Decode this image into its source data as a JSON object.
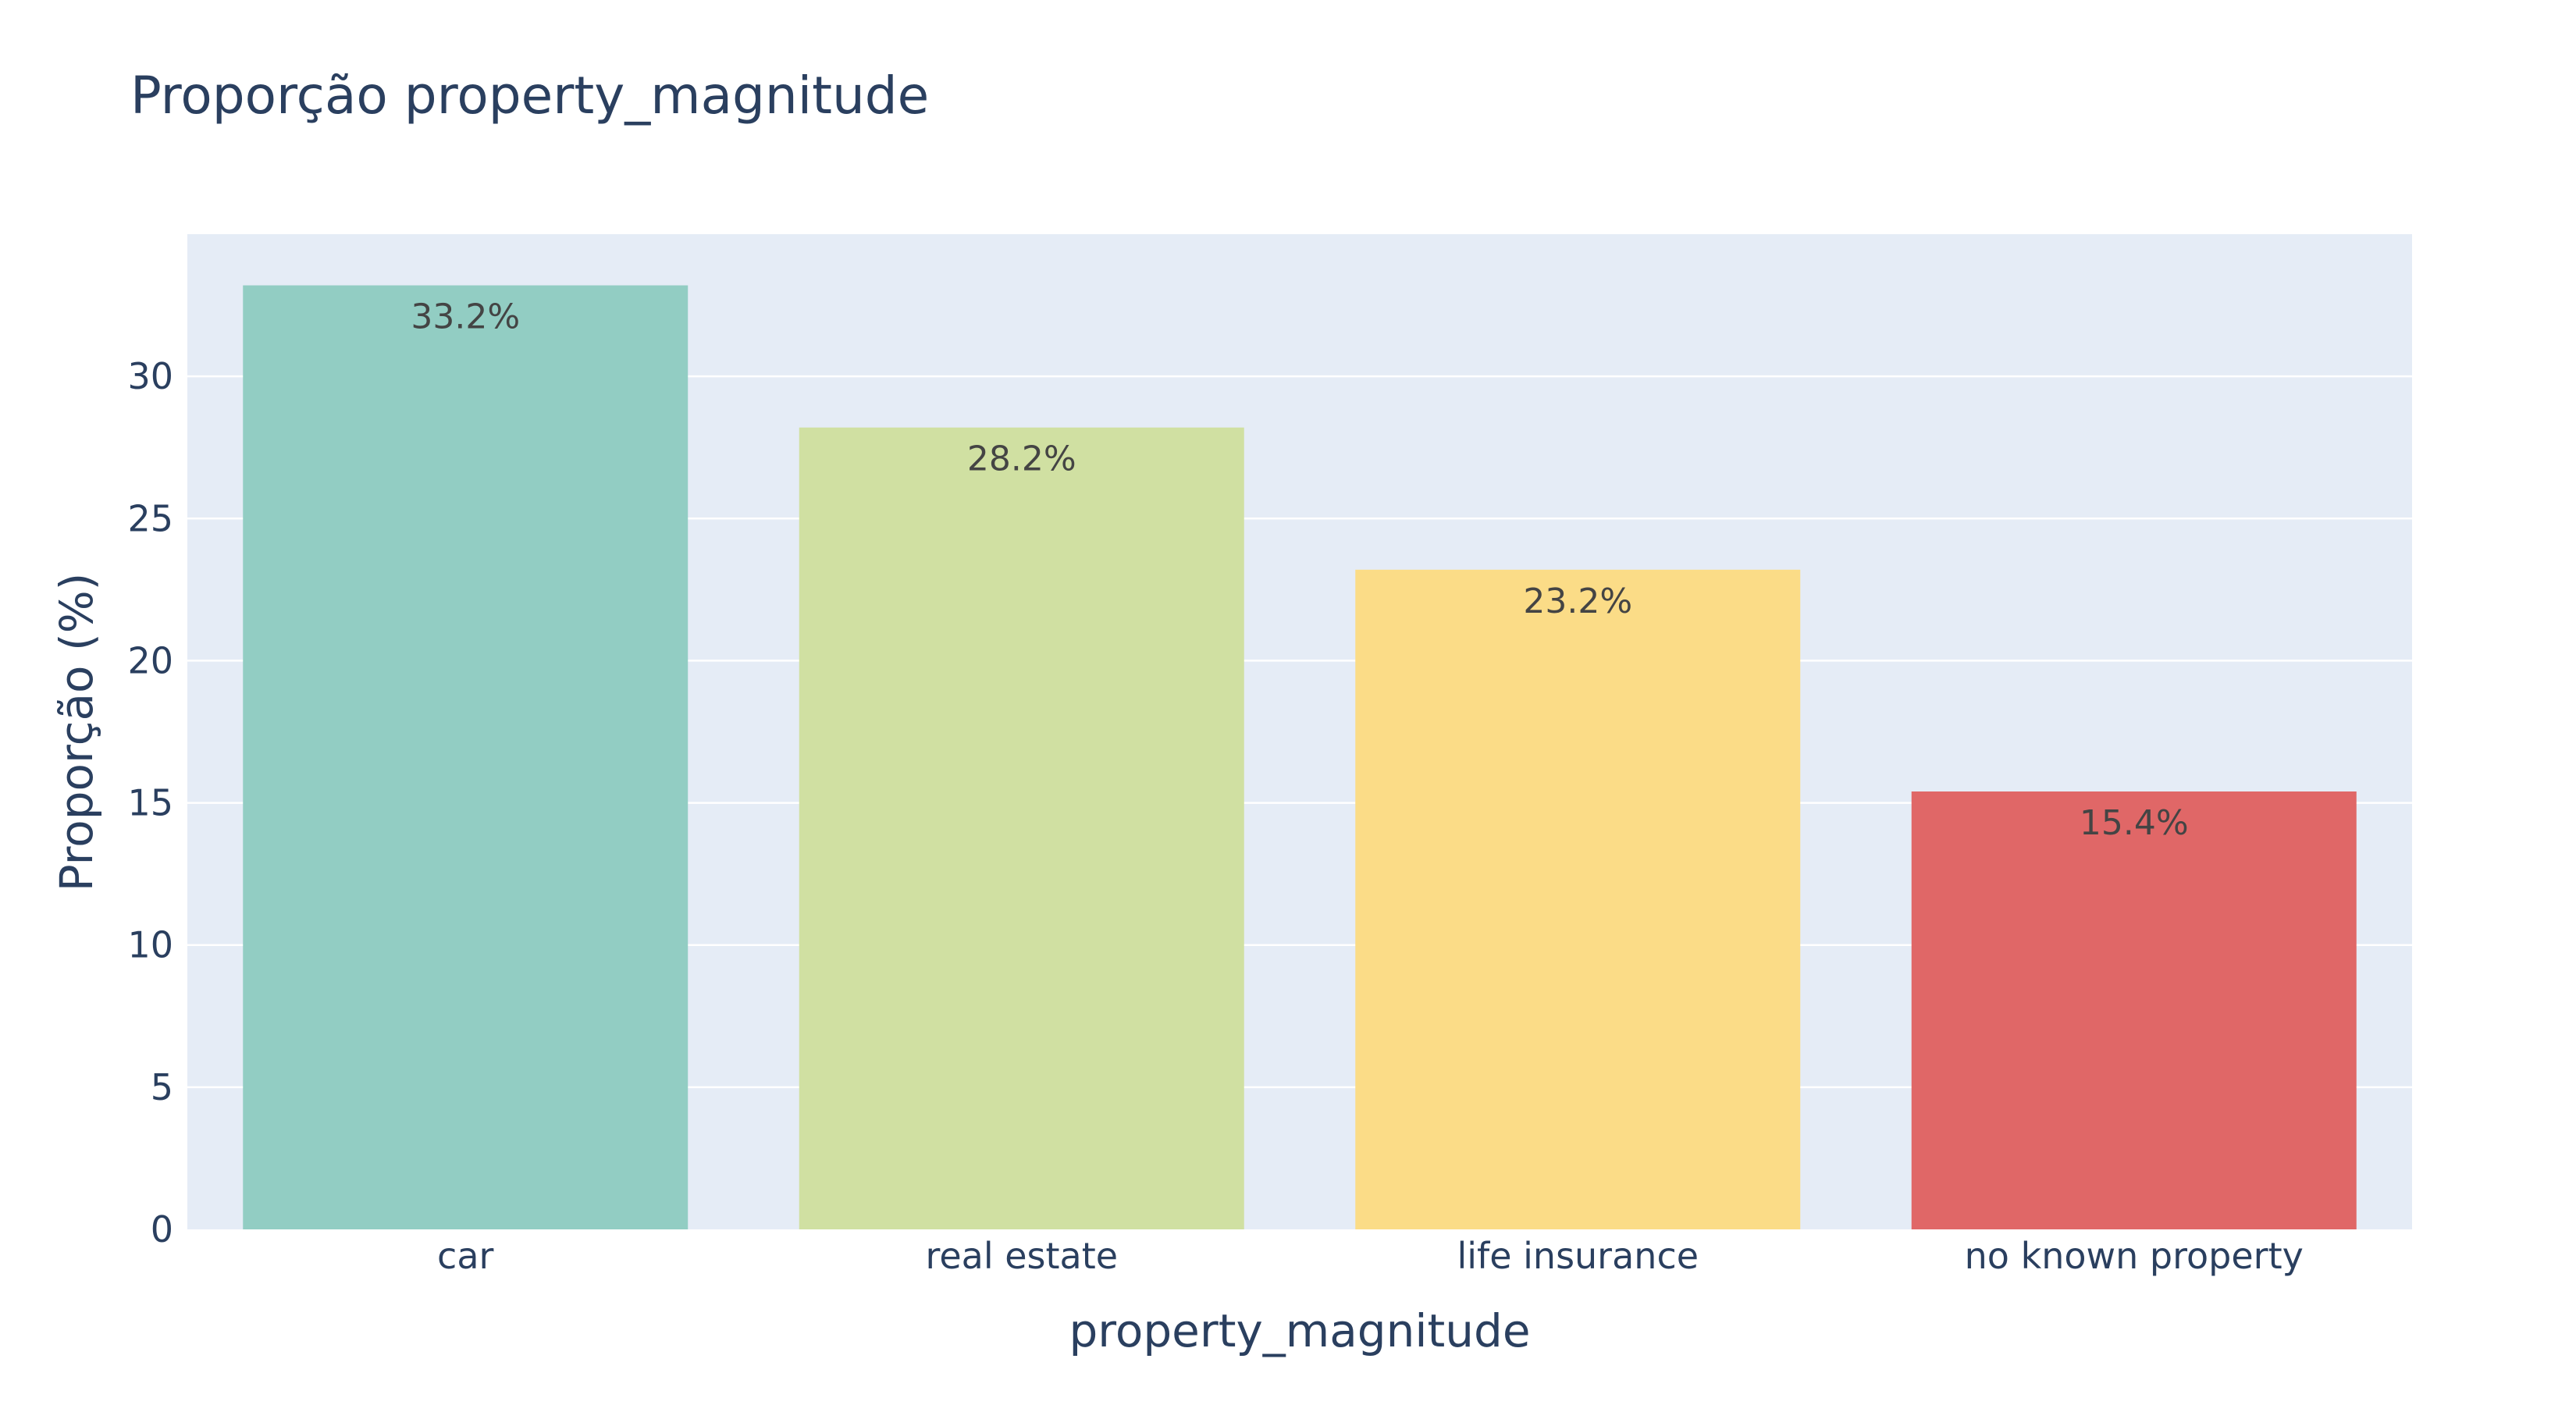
{
  "chart_data": {
    "type": "bar",
    "title": "Proporção property_magnitude",
    "xlabel": "property_magnitude",
    "ylabel": "Proporção (%)",
    "categories": [
      "car",
      "real estate",
      "life insurance",
      "no known property"
    ],
    "values": [
      33.2,
      28.2,
      23.2,
      15.4
    ],
    "value_labels": [
      "33.2%",
      "28.2%",
      "23.2%",
      "15.4%"
    ],
    "colors": [
      "#92cdc3",
      "#d0e0a2",
      "#fbdc87",
      "#e06767"
    ],
    "ylim": [
      0,
      35
    ],
    "yticks": [
      0,
      5,
      10,
      15,
      20,
      25,
      30
    ],
    "grid": true,
    "plot_background": "#e5ecf6",
    "grid_color": "#ffffff",
    "legend": "none"
  }
}
